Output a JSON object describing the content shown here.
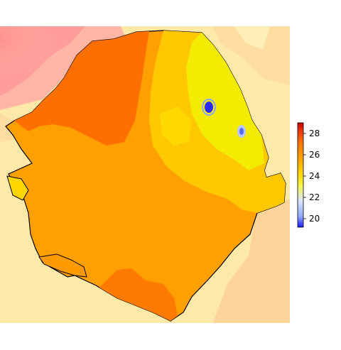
{
  "legend": {
    "colors": [
      "#1a1aff",
      "#8ea6ff",
      "#d9e6ff",
      "#f5f54a",
      "#ffd400",
      "#ffa600",
      "#ff7a00",
      "#e83a10",
      "#cc0000"
    ],
    "ticks": [
      {
        "label": "28",
        "value": 28
      },
      {
        "label": "26",
        "value": 26
      },
      {
        "label": "24",
        "value": 24
      },
      {
        "label": "22",
        "value": 22
      },
      {
        "label": "20",
        "value": 20
      }
    ],
    "min": 19.2,
    "max": 29.0
  },
  "colors": {
    "outside_base": "#ffe9a8",
    "outside_hot": "#ff9d9d",
    "outside_warm": "#ffbe85",
    "inner_hot": "#ff6f00",
    "inner_mid": "#ff9400",
    "inner_warm": "#ffb300",
    "inner_cool": "#ffd200",
    "inner_cooler": "#f2ee00",
    "cold_spot": "#2a2aff"
  }
}
